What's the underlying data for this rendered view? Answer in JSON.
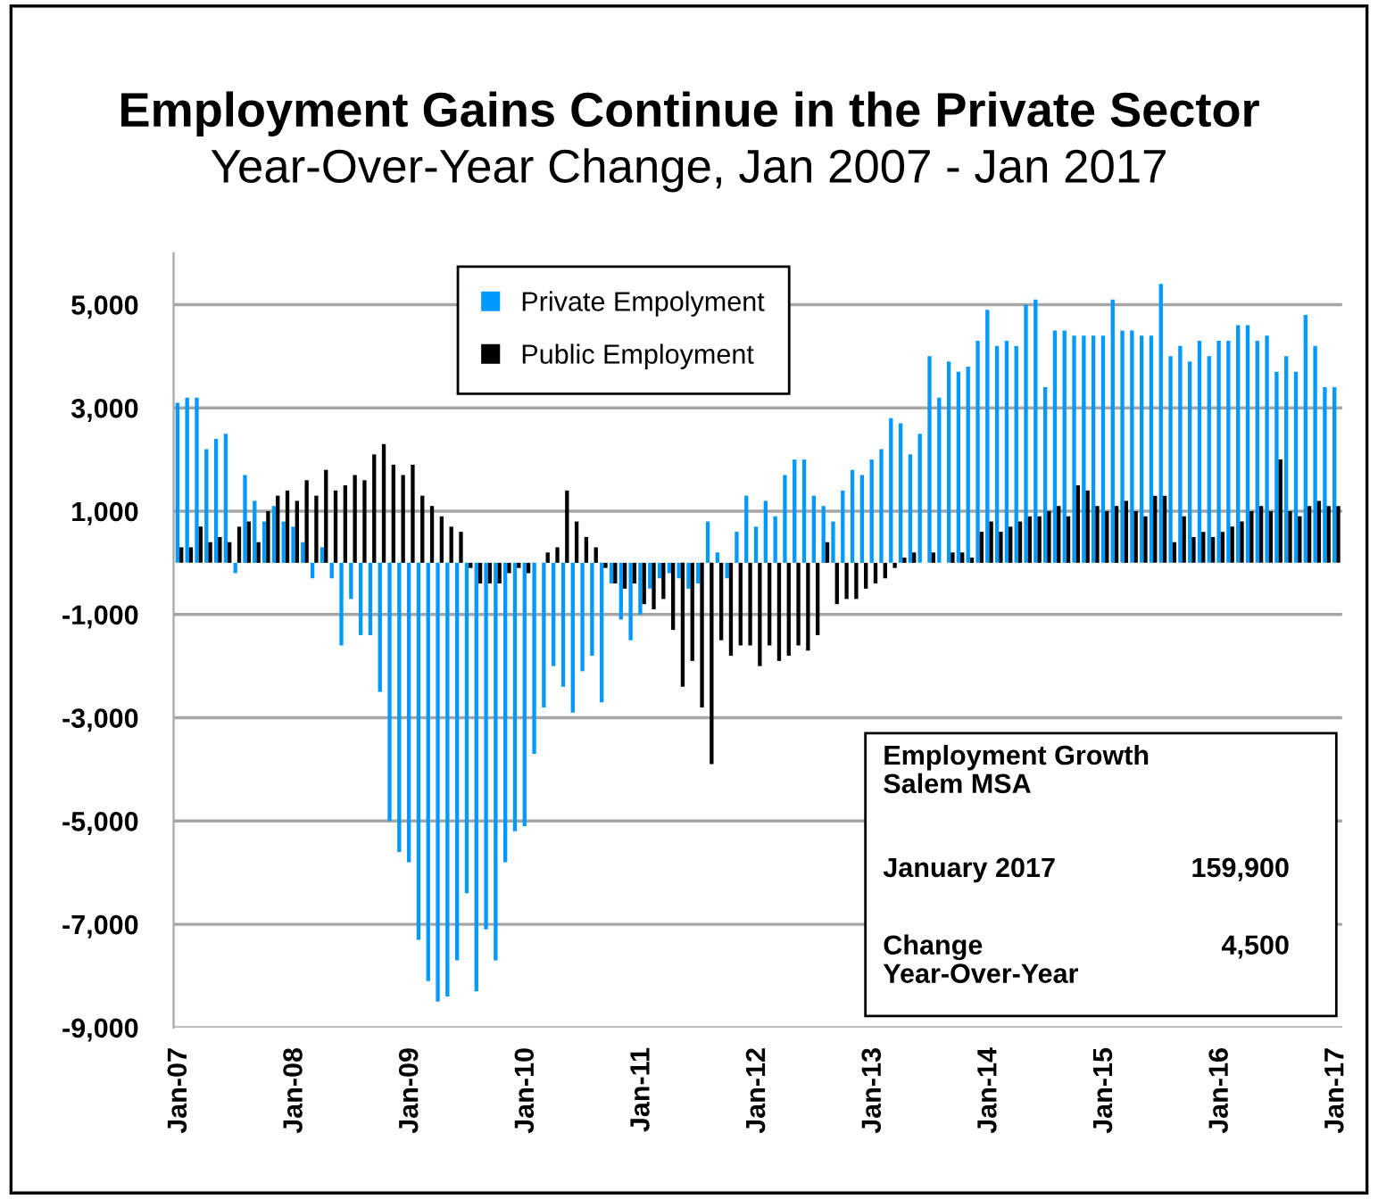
{
  "chart_data": {
    "type": "bar",
    "title": "Employment Gains Continue in the Private Sector",
    "subtitle": "Year-Over-Year Change, Jan 2007 - Jan 2017",
    "categories": [
      "Jan-07",
      null,
      null,
      null,
      null,
      null,
      null,
      null,
      null,
      null,
      null,
      null,
      "Jan-08",
      null,
      null,
      null,
      null,
      null,
      null,
      null,
      null,
      null,
      null,
      null,
      "Jan-09",
      null,
      null,
      null,
      null,
      null,
      null,
      null,
      null,
      null,
      null,
      null,
      "Jan-10",
      null,
      null,
      null,
      null,
      null,
      null,
      null,
      null,
      null,
      null,
      null,
      "Jan-11",
      null,
      null,
      null,
      null,
      null,
      null,
      null,
      null,
      null,
      null,
      null,
      "Jan-12",
      null,
      null,
      null,
      null,
      null,
      null,
      null,
      null,
      null,
      null,
      null,
      "Jan-13",
      null,
      null,
      null,
      null,
      null,
      null,
      null,
      null,
      null,
      null,
      null,
      "Jan-14",
      null,
      null,
      null,
      null,
      null,
      null,
      null,
      null,
      null,
      null,
      null,
      "Jan-15",
      null,
      null,
      null,
      null,
      null,
      null,
      null,
      null,
      null,
      null,
      null,
      "Jan-16",
      null,
      null,
      null,
      null,
      null,
      null,
      null,
      null,
      null,
      null,
      null,
      "Jan-17"
    ],
    "series": [
      {
        "name": "Private Empolyment",
        "color": "#0099ff",
        "values": [
          3100,
          3200,
          3200,
          2200,
          2400,
          2500,
          -200,
          1700,
          1200,
          800,
          1100,
          800,
          700,
          400,
          -300,
          300,
          -300,
          -1600,
          -700,
          -1400,
          -1400,
          -2500,
          -5000,
          -5600,
          -5800,
          -7300,
          -8100,
          -8500,
          -8400,
          -7700,
          -6400,
          -8300,
          -7100,
          -7700,
          -5800,
          -5200,
          -5100,
          -3700,
          -2800,
          -2000,
          -2400,
          -2900,
          -2100,
          -1800,
          -2700,
          -400,
          -1100,
          -1500,
          -1000,
          -500,
          -300,
          -200,
          -300,
          -500,
          -400,
          800,
          200,
          -300,
          600,
          1300,
          700,
          1200,
          900,
          1700,
          2000,
          2000,
          1300,
          1100,
          800,
          1400,
          1800,
          1700,
          2000,
          2200,
          2800,
          2700,
          2100,
          2500,
          4000,
          3200,
          3900,
          3700,
          3800,
          4300,
          4900,
          4200,
          4300,
          4200,
          5000,
          5100,
          3400,
          4500,
          4500,
          4400,
          4400,
          4400,
          4400,
          5100,
          4500,
          4500,
          4400,
          4400,
          5400,
          4000,
          4200,
          3900,
          4300,
          4000,
          4300,
          4300,
          4600,
          4600,
          4300,
          4400,
          3700,
          4000,
          3700,
          4800,
          4200,
          3400,
          3400
        ]
      },
      {
        "name": "Public Employment",
        "color": "#000000",
        "values": [
          300,
          300,
          700,
          400,
          500,
          400,
          700,
          800,
          400,
          1000,
          1300,
          1400,
          1200,
          1600,
          1300,
          1800,
          1400,
          1500,
          1700,
          1600,
          2100,
          2300,
          1900,
          1700,
          1900,
          1300,
          1100,
          900,
          700,
          600,
          -100,
          -400,
          -400,
          -400,
          -200,
          -100,
          -200,
          0,
          200,
          300,
          1400,
          800,
          500,
          300,
          -100,
          -400,
          -500,
          -400,
          -800,
          -900,
          -700,
          -1300,
          -2400,
          -1900,
          -2800,
          -3900,
          -1500,
          -1800,
          -1600,
          -1600,
          -2000,
          -1600,
          -1900,
          -1800,
          -1600,
          -1700,
          -1400,
          400,
          -800,
          -700,
          -700,
          -500,
          -400,
          -300,
          -100,
          100,
          200,
          0,
          200,
          0,
          200,
          200,
          100,
          600,
          800,
          600,
          700,
          800,
          900,
          900,
          1000,
          1100,
          900,
          1500,
          1400,
          1100,
          1000,
          1100,
          1200,
          1000,
          900,
          1300,
          1300,
          400,
          900,
          500,
          600,
          500,
          600,
          700,
          800,
          1000,
          1100,
          1000,
          2000,
          1000,
          900,
          1100,
          1200,
          1100,
          1100
        ]
      }
    ],
    "ylim": [
      -9000,
      6000
    ],
    "yticks": [
      {
        "value": -9000,
        "label": "-9,000"
      },
      {
        "value": -7000,
        "label": "-7,000"
      },
      {
        "value": -5000,
        "label": "-5,000"
      },
      {
        "value": -3000,
        "label": "-3,000"
      },
      {
        "value": -1000,
        "label": "-1,000"
      },
      {
        "value": 1000,
        "label": "1,000"
      },
      {
        "value": 3000,
        "label": "3,000"
      },
      {
        "value": 5000,
        "label": "5,000"
      }
    ],
    "grid": "y",
    "legend": "top",
    "annotations": [
      "Employment Growth\nSalem MSA",
      "January 2017",
      "159,900",
      "Change\nYear-Over-Year",
      "4,500"
    ]
  }
}
